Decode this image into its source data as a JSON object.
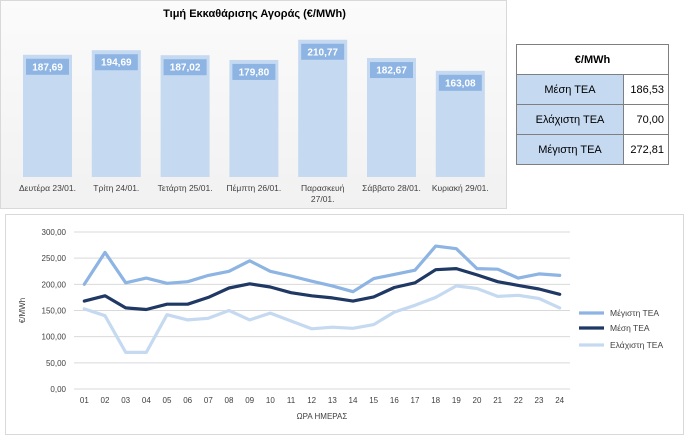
{
  "top_chart_title": "Τιμή Εκκαθάρισης Αγοράς (€/MWh)",
  "table": {
    "header": "€/MWh",
    "rows": [
      {
        "label": "Μέση ΤΕΑ",
        "value": "186,53"
      },
      {
        "label": "Ελάχιστη ΤΕΑ",
        "value": "70,00"
      },
      {
        "label": "Μέγιστη ΤΕΑ",
        "value": "272,81"
      }
    ]
  },
  "colors": {
    "bar": "#c5d9f1",
    "bar_label_bg": "#8db4e2",
    "max_line": "#8db4e2",
    "mean_line": "#1f3864",
    "min_line": "#c5d9f1"
  },
  "chart_data": [
    {
      "type": "bar",
      "title": "Τιμή Εκκαθάρισης Αγοράς (€/MWh)",
      "categories": [
        "Δευτέρα 23/01.",
        "Τρίτη 24/01.",
        "Τετάρτη 25/01.",
        "Πέμπτη 26/01.",
        "Παρασκευή 27/01.",
        "Σάββατο 28/01.",
        "Κυριακή 29/01."
      ],
      "values": [
        187.69,
        194.69,
        187.02,
        179.8,
        210.77,
        182.67,
        163.08
      ],
      "value_labels": [
        "187,69",
        "194,69",
        "187,02",
        "179,80",
        "210,77",
        "182,67",
        "163,08"
      ]
    },
    {
      "type": "line",
      "x": [
        "01",
        "02",
        "03",
        "04",
        "05",
        "06",
        "07",
        "08",
        "09",
        "10",
        "11",
        "12",
        "13",
        "14",
        "15",
        "16",
        "17",
        "18",
        "19",
        "20",
        "21",
        "22",
        "23",
        "24"
      ],
      "xlabel": "ΩΡΑ ΗΜΕΡΑΣ",
      "ylabel": "€/MWh",
      "ylim": [
        0,
        300
      ],
      "yticks": [
        "0,00",
        "50,00",
        "100,00",
        "150,00",
        "200,00",
        "250,00",
        "300,00"
      ],
      "grid": true,
      "legend_position": "right",
      "series": [
        {
          "name": "Μέγιστη ΤΕΑ",
          "values": [
            200,
            261,
            203,
            212,
            202,
            205,
            217,
            225,
            245,
            225,
            216,
            206,
            197,
            186,
            211,
            219,
            227,
            273,
            268,
            230,
            229,
            212,
            220,
            217
          ]
        },
        {
          "name": "Μέση ΤΕΑ",
          "values": [
            168,
            178,
            155,
            152,
            162,
            162,
            175,
            193,
            201,
            195,
            184,
            178,
            174,
            168,
            176,
            194,
            203,
            228,
            230,
            218,
            205,
            198,
            191,
            181
          ]
        },
        {
          "name": "Ελάχιστη ΤΕΑ",
          "values": [
            153,
            140,
            70,
            70,
            142,
            132,
            135,
            150,
            132,
            145,
            130,
            115,
            118,
            116,
            123,
            147,
            160,
            175,
            197,
            192,
            177,
            179,
            173,
            155
          ]
        }
      ]
    }
  ]
}
